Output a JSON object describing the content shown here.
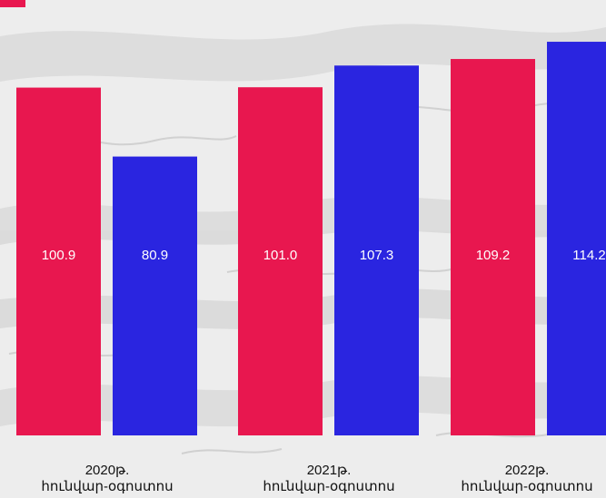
{
  "chart_data": {
    "type": "bar",
    "categories": [
      [
        "2020թ.",
        "հունվար-օգոստոս"
      ],
      [
        "2021թ.",
        "հունվար-օգոստոս"
      ],
      [
        "2022թ.",
        "հունվար-օգոստոս"
      ]
    ],
    "series": [
      {
        "values": [
          100.9,
          101.0,
          109.2
        ],
        "color": "#E8174F"
      },
      {
        "values": [
          80.9,
          107.3,
          114.2
        ],
        "color": "#2A25E0"
      }
    ],
    "value_labels": [
      [
        "100.9",
        "101.0",
        "109.2"
      ],
      [
        "80.9",
        "107.3",
        "114.2"
      ]
    ],
    "title": "",
    "xlabel": "",
    "ylabel": "",
    "legend": "top-left",
    "grid": false,
    "background": "light-grey textured"
  }
}
